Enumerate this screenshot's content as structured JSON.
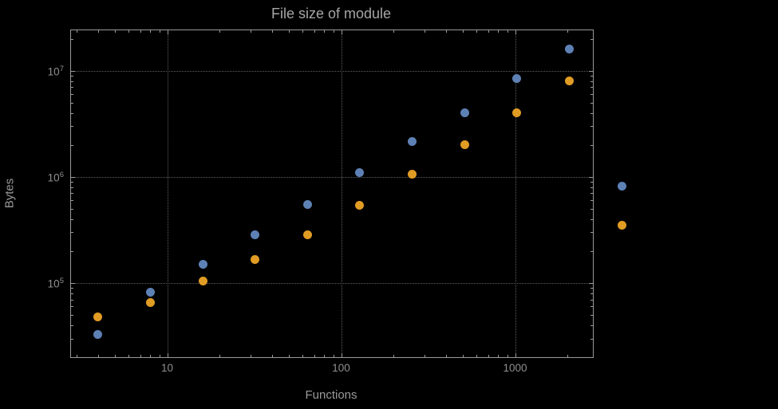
{
  "window": {
    "background": "#000000"
  },
  "chart_data": {
    "type": "scatter",
    "title": "File size of module",
    "xlabel": "Functions",
    "ylabel": "Bytes",
    "x_scale": "log",
    "y_scale": "log",
    "xlim": [
      2.8,
      2800
    ],
    "ylim": [
      20000,
      24000000
    ],
    "x_ticks": [
      10,
      100,
      1000
    ],
    "x_tick_labels": [
      "10",
      "100",
      "1000"
    ],
    "y_tick_exponents": [
      5,
      6,
      7
    ],
    "grid": "dotted-major-gridlines",
    "legend_position": "none",
    "x": [
      4,
      8,
      16,
      32,
      64,
      128,
      256,
      512,
      1024,
      2048,
      4096
    ],
    "series": [
      {
        "name": "blue",
        "color": "#5e81b5",
        "values": [
          33000,
          82000,
          150000,
          285000,
          550000,
          1100000,
          2150000,
          4000000,
          8500000,
          16000000,
          820000
        ]
      },
      {
        "name": "orange",
        "color": "#e19c24",
        "values": [
          48000,
          65000,
          105000,
          165000,
          285000,
          540000,
          1050000,
          2000000,
          4000000,
          8000000,
          350000
        ]
      }
    ],
    "colors": {
      "background": "#000000",
      "frame": "#9a9a9a",
      "gridline": "#5e5e5e",
      "labels": "#9a9a9a"
    }
  }
}
